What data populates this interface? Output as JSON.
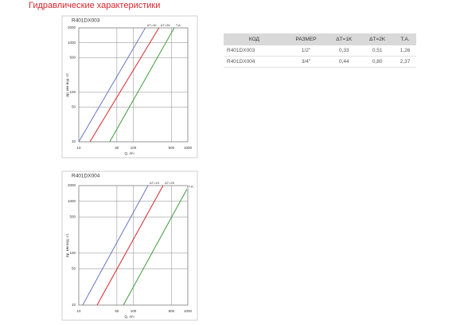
{
  "title": "Гидравлические характеристики",
  "chart_data": [
    {
      "type": "line",
      "title": "R401DX003",
      "xlabel": "Q, л/ч",
      "ylabel": "Δp, мм вод. ст.",
      "xscale": "log",
      "yscale": "log",
      "grid": true,
      "xlim": [
        10,
        1000
      ],
      "ylim": [
        10,
        2000
      ],
      "xticks": [
        10,
        50,
        100,
        500,
        1000
      ],
      "yticks": [
        10,
        50,
        100,
        500,
        1000,
        2000
      ],
      "series": [
        {
          "name": "ΔT=1K",
          "color": "#6678c2",
          "x": [
            10,
            166
          ],
          "values": [
            10,
            2000
          ]
        },
        {
          "name": "ΔT=2K",
          "color": "#d9262d",
          "x": [
            16,
            295
          ],
          "values": [
            10,
            2000
          ]
        },
        {
          "name": "T.A.",
          "color": "#3f9a3f",
          "x": [
            37,
            562
          ],
          "values": [
            10,
            2000
          ]
        }
      ]
    },
    {
      "type": "line",
      "title": "R401DX004",
      "xlabel": "Q, л/ч",
      "ylabel": "Δp, мм вод. ст.",
      "xscale": "log",
      "yscale": "log",
      "grid": true,
      "xlim": [
        10,
        1000
      ],
      "ylim": [
        10,
        2000
      ],
      "xticks": [
        10,
        50,
        100,
        500,
        1000
      ],
      "yticks": [
        10,
        50,
        100,
        500,
        1000,
        2000
      ],
      "series": [
        {
          "name": "ΔT=1K",
          "color": "#6678c2",
          "x": [
            11.8,
            186
          ],
          "values": [
            10,
            2000
          ]
        },
        {
          "name": "ΔT=2K",
          "color": "#d9262d",
          "x": [
            21.7,
            352
          ],
          "values": [
            10,
            2000
          ]
        },
        {
          "name": "T.A.",
          "color": "#3f9a3f",
          "x": [
            66,
            960
          ],
          "values": [
            10,
            1700
          ]
        }
      ]
    }
  ],
  "table": {
    "header": [
      "КОД",
      "РАЗМЕР",
      "ΔT=1K",
      "ΔT=2K",
      "T.A."
    ],
    "rows": [
      [
        "R401DX003",
        "1/2\"",
        "0,33",
        "0,51",
        "1,26"
      ],
      [
        "R401DX004",
        "3/4\"",
        "0,44",
        "0,80",
        "2,37"
      ]
    ]
  }
}
